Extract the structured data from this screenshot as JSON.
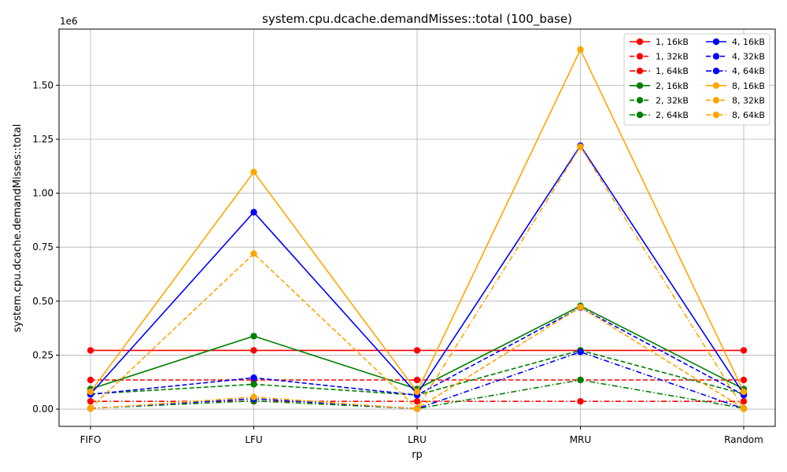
{
  "chart_data": {
    "type": "line",
    "title": "system.cpu.dcache.demandMisses::total (100_base)",
    "xlabel": "rp",
    "ylabel": "system.cpu.dcache.demandMisses::total",
    "y_offset_label": "1e6",
    "categories": [
      "FIFO",
      "LFU",
      "LRU",
      "MRU",
      "Random"
    ],
    "ylim": [
      -80000,
      1760000
    ],
    "yticks": [
      0,
      250000,
      500000,
      750000,
      1000000,
      1250000,
      1500000
    ],
    "ytick_labels": [
      "0.00",
      "0.25",
      "0.50",
      "0.75",
      "1.00",
      "1.25",
      "1.50"
    ],
    "grid": true,
    "legend_position": "top-right",
    "legend_columns": 2,
    "series": [
      {
        "name": "1, 16kB",
        "color": "#ff0000",
        "style": "solid",
        "values": [
          272000,
          272000,
          272000,
          272000,
          272000
        ]
      },
      {
        "name": "1, 32kB",
        "color": "#ff0000",
        "style": "dashed",
        "values": [
          135000,
          135000,
          135000,
          135000,
          135000
        ]
      },
      {
        "name": "1, 64kB",
        "color": "#ff0000",
        "style": "dashdot",
        "values": [
          36000,
          36000,
          36000,
          36000,
          36000
        ]
      },
      {
        "name": "2, 16kB",
        "color": "#008000",
        "style": "solid",
        "values": [
          93000,
          338000,
          93000,
          478000,
          93000
        ]
      },
      {
        "name": "2, 32kB",
        "color": "#008000",
        "style": "dashed",
        "values": [
          70000,
          115000,
          65000,
          272000,
          70000
        ]
      },
      {
        "name": "2, 64kB",
        "color": "#008000",
        "style": "dashdot",
        "values": [
          4000,
          38000,
          2000,
          135000,
          4000
        ]
      },
      {
        "name": "4, 16kB",
        "color": "#0000ff",
        "style": "solid",
        "values": [
          70000,
          912000,
          70000,
          1220000,
          70000
        ]
      },
      {
        "name": "4, 32kB",
        "color": "#0000ff",
        "style": "dashed",
        "values": [
          68000,
          145000,
          65000,
          470000,
          65000
        ]
      },
      {
        "name": "4, 64kB",
        "color": "#0000ff",
        "style": "dashdot",
        "values": [
          3000,
          48000,
          2000,
          265000,
          2000
        ]
      },
      {
        "name": "8, 16kB",
        "color": "#ffa500",
        "style": "solid",
        "values": [
          80000,
          1098000,
          80000,
          1665000,
          80000
        ]
      },
      {
        "name": "8, 32kB",
        "color": "#ffa500",
        "style": "dashed",
        "values": [
          5000,
          720000,
          3000,
          472000,
          3000
        ]
      },
      {
        "name": "8, 64kB",
        "color": "#ffa500",
        "style": "dashdot",
        "values": [
          2000,
          56000,
          1000,
          1215000,
          1000
        ]
      }
    ]
  }
}
